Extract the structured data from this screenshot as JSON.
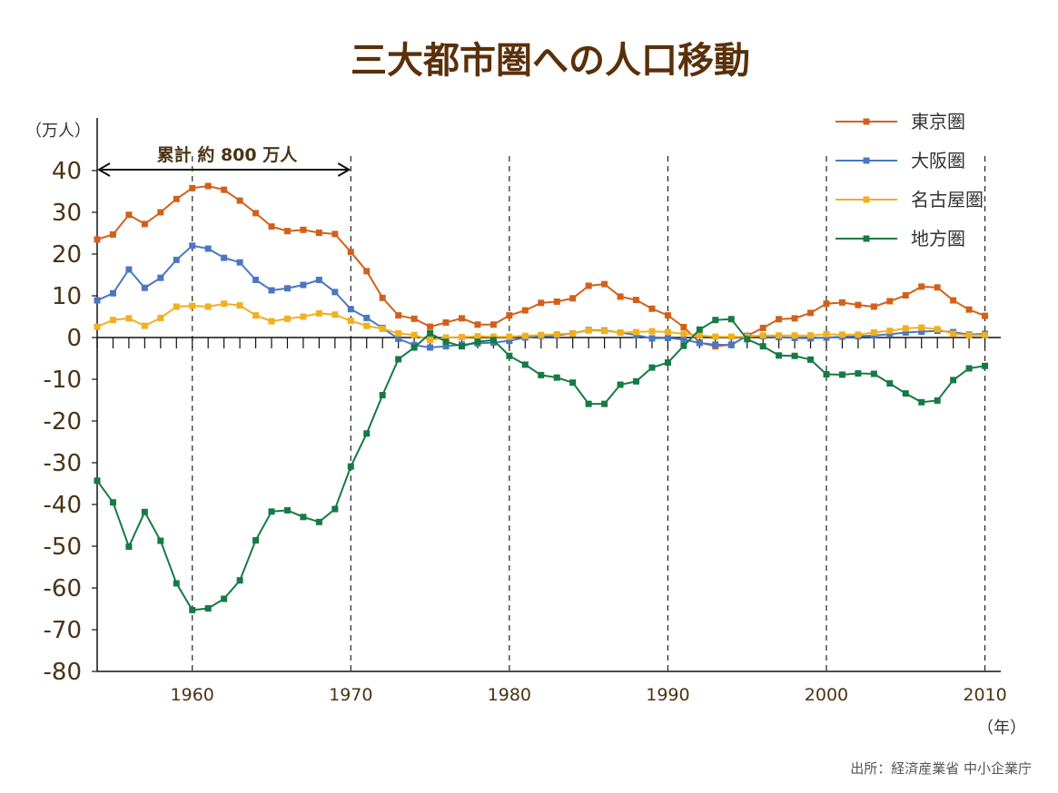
{
  "chart_data": {
    "type": "line",
    "title": "三大都市圏への人口移動",
    "ylabel": "（万人）",
    "xlabel": "（年）",
    "ylim": [
      -80,
      40
    ],
    "yticks": [
      "40",
      "30",
      "20",
      "10",
      "0",
      "-10",
      "-20",
      "-30",
      "-40",
      "-50",
      "-60",
      "-70",
      "-80"
    ],
    "xlim": [
      1954,
      2011
    ],
    "xticks": [
      "1960",
      "1970",
      "1980",
      "1990",
      "2000",
      "2010"
    ],
    "grid": "vertical dashed lines at 1960, 1970, 1980, 1990, 2000, 2010",
    "legend_position": "top-right",
    "annotation": {
      "text": "累計 約 800 万人",
      "from": 1954,
      "to": 1970
    },
    "source": "出所：経済産業省 中小企業庁",
    "x": [
      1954,
      1955,
      1956,
      1957,
      1958,
      1959,
      1960,
      1961,
      1962,
      1963,
      1964,
      1965,
      1966,
      1967,
      1968,
      1969,
      1970,
      1971,
      1972,
      1973,
      1974,
      1975,
      1976,
      1977,
      1978,
      1979,
      1980,
      1981,
      1982,
      1983,
      1984,
      1985,
      1986,
      1987,
      1988,
      1989,
      1990,
      1991,
      1992,
      1993,
      1994,
      1995,
      1996,
      1997,
      1998,
      1999,
      2000,
      2001,
      2002,
      2003,
      2004,
      2005,
      2006,
      2007,
      2008,
      2009,
      2010
    ],
    "series": [
      {
        "name": "東京圏",
        "color": "#d2601a",
        "values": [
          23.5,
          24.7,
          29.4,
          27.2,
          30.0,
          33.2,
          35.8,
          36.3,
          35.4,
          32.8,
          29.8,
          26.6,
          25.5,
          25.8,
          25.1,
          24.8,
          20.5,
          15.9,
          9.5,
          5.3,
          4.5,
          2.6,
          3.6,
          4.6,
          3.1,
          3.1,
          5.3,
          6.5,
          8.3,
          8.6,
          9.4,
          12.4,
          12.8,
          9.8,
          9.0,
          6.9,
          5.3,
          2.5,
          -1.2,
          -2.1,
          -1.7,
          0.4,
          2.3,
          4.4,
          4.6,
          5.9,
          8.1,
          8.4,
          7.8,
          7.4,
          8.7,
          10.1,
          12.2,
          12.0,
          8.9,
          6.7,
          5.2
        ]
      },
      {
        "name": "大阪圏",
        "color": "#4a78c0",
        "values": [
          8.9,
          10.6,
          16.3,
          11.9,
          14.3,
          18.6,
          22.0,
          21.3,
          19.1,
          18.0,
          13.8,
          11.3,
          11.8,
          12.6,
          13.8,
          10.9,
          6.8,
          4.7,
          2.3,
          -0.3,
          -1.8,
          -2.4,
          -2.1,
          -1.7,
          -1.4,
          -1.2,
          -0.8,
          0.0,
          0.4,
          0.5,
          1.0,
          1.8,
          1.7,
          1.2,
          0.6,
          -0.2,
          -0.1,
          -0.5,
          -1.3,
          -1.7,
          -1.8,
          0.4,
          0.3,
          0.1,
          -0.1,
          -0.2,
          0.0,
          0.2,
          0.3,
          0.5,
          0.8,
          1.2,
          1.4,
          1.6,
          1.3,
          0.7,
          0.9
        ]
      },
      {
        "name": "名古屋圏",
        "color": "#f0b020",
        "values": [
          2.6,
          4.2,
          4.6,
          2.8,
          4.7,
          7.4,
          7.6,
          7.4,
          8.1,
          7.7,
          5.3,
          3.9,
          4.5,
          5.0,
          5.8,
          5.5,
          4.0,
          2.8,
          2.1,
          1.0,
          0.6,
          -0.6,
          0.0,
          0.1,
          0.3,
          0.2,
          0.2,
          0.4,
          0.6,
          0.8,
          1.0,
          1.7,
          1.6,
          1.2,
          1.3,
          1.5,
          1.3,
          0.9,
          0.5,
          0.2,
          0.2,
          0.2,
          0.5,
          0.5,
          0.5,
          0.5,
          0.8,
          0.7,
          0.7,
          1.2,
          1.6,
          2.2,
          2.4,
          2.0,
          0.9,
          0.5,
          0.6
        ]
      },
      {
        "name": "地方圏",
        "color": "#167a44",
        "values": [
          -34.3,
          -39.5,
          -50.1,
          -41.8,
          -48.7,
          -58.9,
          -65.3,
          -64.9,
          -62.6,
          -58.2,
          -48.6,
          -41.7,
          -41.4,
          -43.0,
          -44.2,
          -41.1,
          -30.9,
          -23.0,
          -13.8,
          -5.2,
          -2.4,
          1.0,
          -1.0,
          -2.1,
          -1.0,
          -0.6,
          -4.4,
          -6.5,
          -9.0,
          -9.6,
          -10.8,
          -15.9,
          -15.9,
          -11.3,
          -10.5,
          -7.2,
          -6.0,
          -2.0,
          1.9,
          4.2,
          4.4,
          -0.4,
          -2.1,
          -4.3,
          -4.4,
          -5.3,
          -8.8,
          -8.9,
          -8.6,
          -8.7,
          -11.0,
          -13.4,
          -15.5,
          -15.1,
          -10.2,
          -7.4,
          -6.8
        ]
      }
    ]
  }
}
